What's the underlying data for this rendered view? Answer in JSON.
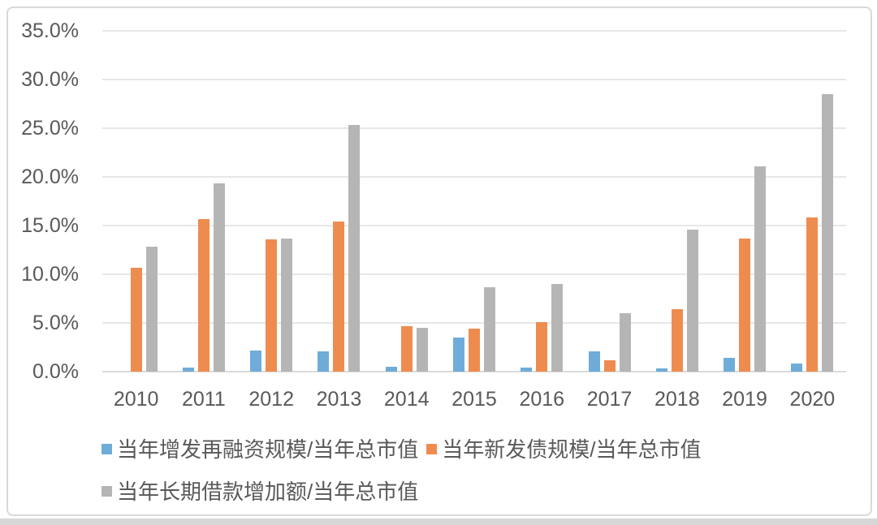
{
  "chart_data": {
    "type": "bar",
    "title": "",
    "xlabel": "",
    "ylabel": "",
    "categories": [
      "2010",
      "2011",
      "2012",
      "2013",
      "2014",
      "2015",
      "2016",
      "2017",
      "2018",
      "2019",
      "2020"
    ],
    "series": [
      {
        "name": "当年增发再融资规模/当年总市值",
        "color": "#6FACD9",
        "values": [
          0.0,
          0.4,
          2.2,
          2.1,
          0.5,
          3.5,
          0.4,
          2.1,
          0.3,
          1.4,
          0.8
        ]
      },
      {
        "name": "当年新发债规模/当年总市值",
        "color": "#EE8C4F",
        "values": [
          10.7,
          15.7,
          13.6,
          15.4,
          4.7,
          4.4,
          5.1,
          1.2,
          6.4,
          13.7,
          15.8
        ]
      },
      {
        "name": "当年长期借款增加额/当年总市值",
        "color": "#B5B5B5",
        "values": [
          12.8,
          19.3,
          13.7,
          25.3,
          4.5,
          8.7,
          9.0,
          6.0,
          14.6,
          21.1,
          28.5
        ]
      }
    ],
    "ylim": [
      0,
      35
    ],
    "ytick_step": 5,
    "ytick_labels": [
      "0.0%",
      "5.0%",
      "10.0%",
      "15.0%",
      "20.0%",
      "25.0%",
      "30.0%",
      "35.0%"
    ],
    "grid": true,
    "legend_position": "bottom",
    "legend_rows": [
      [
        0,
        1
      ],
      [
        2
      ]
    ]
  },
  "style": {
    "axis_text_color": "#595959",
    "gridline_color": "#e7e7e7",
    "baseline_color": "#dadada",
    "card_border_color": "#d9d9d9",
    "bottom_strip_color": "#d7d7d7",
    "background": "#ffffff"
  }
}
